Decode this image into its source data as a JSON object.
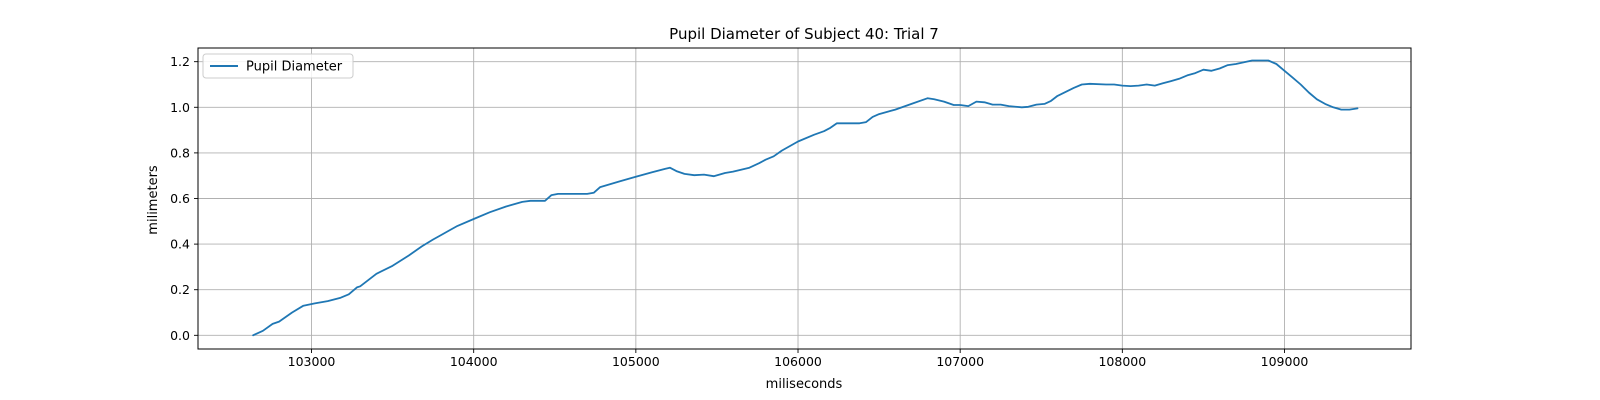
{
  "chart_data": {
    "type": "line",
    "title": "Pupil Diameter of Subject 40: Trial 7",
    "xlabel": "miliseconds",
    "ylabel": "milimeters",
    "xlim": [
      102300,
      109780
    ],
    "ylim": [
      -0.06,
      1.26
    ],
    "xticks": [
      103000,
      104000,
      105000,
      106000,
      107000,
      108000,
      109000
    ],
    "yticks": [
      0.0,
      0.2,
      0.4,
      0.6,
      0.8,
      1.0,
      1.2
    ],
    "grid": true,
    "legend": {
      "position": "top-left",
      "entries": [
        "Pupil Diameter"
      ]
    },
    "series": [
      {
        "name": "Pupil Diameter",
        "color": "#1f77b4",
        "x": [
          102640,
          102700,
          102760,
          102800,
          102880,
          102950,
          103020,
          103100,
          103180,
          103230,
          103280,
          103300,
          103400,
          103500,
          103600,
          103680,
          103750,
          103800,
          103850,
          103900,
          104000,
          104100,
          104200,
          104300,
          104350,
          104400,
          104440,
          104480,
          104520,
          104600,
          104700,
          104740,
          104780,
          104900,
          105000,
          105100,
          105180,
          105210,
          105250,
          105300,
          105360,
          105420,
          105480,
          105550,
          105600,
          105700,
          105760,
          105800,
          105850,
          105900,
          106000,
          106100,
          106160,
          106200,
          106240,
          106300,
          106380,
          106420,
          106460,
          106500,
          106600,
          106700,
          106800,
          106840,
          106900,
          106960,
          107000,
          107050,
          107100,
          107150,
          107200,
          107250,
          107300,
          107380,
          107420,
          107470,
          107520,
          107560,
          107600,
          107700,
          107750,
          107800,
          107900,
          107950,
          108000,
          108050,
          108100,
          108150,
          108200,
          108250,
          108300,
          108350,
          108400,
          108450,
          108500,
          108550,
          108600,
          108650,
          108700,
          108800,
          108850,
          108900,
          108950,
          109000,
          109050,
          109100,
          109150,
          109200,
          109250,
          109300,
          109350,
          109400,
          109450
        ],
        "y": [
          0.0,
          0.02,
          0.05,
          0.06,
          0.1,
          0.13,
          0.14,
          0.15,
          0.165,
          0.18,
          0.21,
          0.215,
          0.27,
          0.305,
          0.35,
          0.39,
          0.42,
          0.44,
          0.46,
          0.48,
          0.51,
          0.54,
          0.565,
          0.585,
          0.59,
          0.59,
          0.59,
          0.615,
          0.62,
          0.62,
          0.62,
          0.625,
          0.65,
          0.675,
          0.695,
          0.715,
          0.73,
          0.735,
          0.72,
          0.708,
          0.702,
          0.705,
          0.698,
          0.712,
          0.718,
          0.735,
          0.755,
          0.77,
          0.785,
          0.81,
          0.85,
          0.88,
          0.895,
          0.91,
          0.93,
          0.93,
          0.93,
          0.935,
          0.958,
          0.97,
          0.99,
          1.015,
          1.04,
          1.035,
          1.025,
          1.01,
          1.01,
          1.005,
          1.025,
          1.022,
          1.012,
          1.012,
          1.005,
          1.0,
          1.002,
          1.012,
          1.015,
          1.028,
          1.05,
          1.085,
          1.1,
          1.103,
          1.1,
          1.1,
          1.095,
          1.093,
          1.095,
          1.1,
          1.095,
          1.105,
          1.115,
          1.125,
          1.14,
          1.15,
          1.165,
          1.16,
          1.17,
          1.185,
          1.19,
          1.205,
          1.205,
          1.205,
          1.19,
          1.16,
          1.13,
          1.1,
          1.065,
          1.035,
          1.015,
          1.0,
          0.99,
          0.99,
          0.995
        ]
      }
    ]
  }
}
